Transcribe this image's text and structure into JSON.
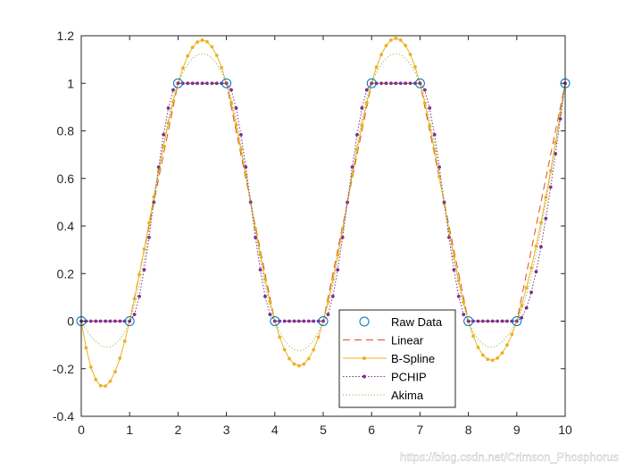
{
  "chart_data": {
    "type": "line",
    "title": "",
    "xlabel": "",
    "ylabel": "",
    "xlim": [
      0,
      10
    ],
    "ylim": [
      -0.4,
      1.2
    ],
    "xticks": [
      0,
      1,
      2,
      3,
      4,
      5,
      6,
      7,
      8,
      9,
      10
    ],
    "yticks": [
      -0.4,
      -0.2,
      0,
      0.2,
      0.4,
      0.6,
      0.8,
      1,
      1.2
    ],
    "xtick_labels": [
      "0",
      "1",
      "2",
      "3",
      "4",
      "5",
      "6",
      "7",
      "8",
      "9",
      "10"
    ],
    "ytick_labels": [
      "-0.4",
      "-0.2",
      "0",
      "0.2",
      "0.4",
      "0.6",
      "0.8",
      "1",
      "1.2"
    ],
    "grid": false,
    "legend_placement": "bottom-center",
    "raw_data": {
      "x": [
        0,
        1,
        2,
        3,
        4,
        5,
        6,
        7,
        8,
        9,
        10
      ],
      "y": [
        0,
        0,
        1,
        1,
        0,
        0,
        1,
        1,
        0,
        0,
        1
      ]
    },
    "query_step": 0.1,
    "series": [
      {
        "name": "Raw Data",
        "method": "raw",
        "style": "circle markers",
        "color": "#0072BD"
      },
      {
        "name": "Linear",
        "method": "linear",
        "style": "dashed",
        "color": "#D95319"
      },
      {
        "name": "B-Spline",
        "method": "spline",
        "style": "solid with dot markers",
        "color": "#EDB120"
      },
      {
        "name": "PCHIP",
        "method": "pchip",
        "style": "dotted with dot markers",
        "color": "#7E2F8E"
      },
      {
        "name": "Akima",
        "method": "makima",
        "style": "dotted",
        "color": "#77AC30"
      }
    ]
  },
  "watermark": "https://blog.csdn.net/Crimson_Phosphorus"
}
